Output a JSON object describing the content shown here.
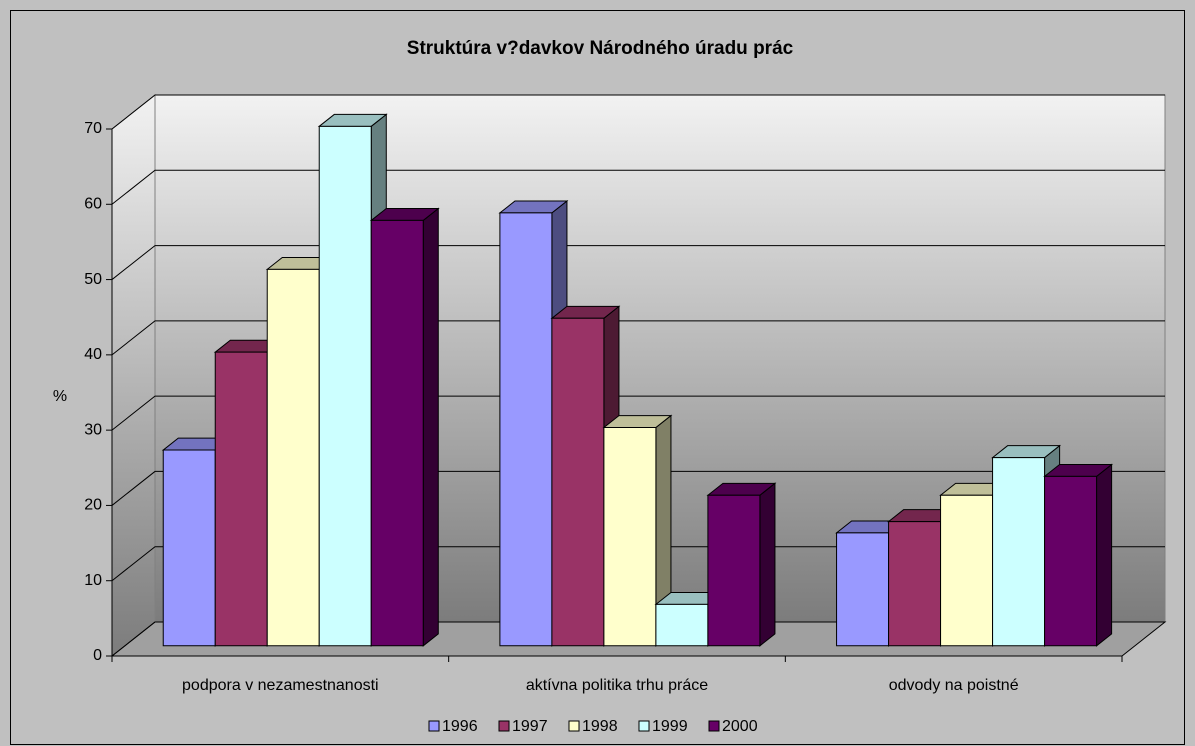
{
  "chart_data": {
    "type": "bar3d",
    "title": "Struktúra v?davkov Národného úradu prác",
    "y_label": "%",
    "categories": [
      "podpora v nezamestnanosti",
      "aktívna politika trhu práce",
      "odvody na poistné"
    ],
    "series": [
      {
        "name": "1996",
        "color": "#9999ff",
        "values": [
          26,
          57.5,
          15
        ]
      },
      {
        "name": "1997",
        "color": "#993366",
        "values": [
          39,
          43.5,
          16.5
        ]
      },
      {
        "name": "1998",
        "color": "#ffffcc",
        "values": [
          50,
          29,
          20
        ]
      },
      {
        "name": "1999",
        "color": "#ccffff",
        "values": [
          69,
          5.5,
          25
        ]
      },
      {
        "name": "2000",
        "color": "#660066",
        "values": [
          56.5,
          20,
          22.5
        ]
      }
    ],
    "ylim": [
      0,
      70
    ],
    "yticks": [
      0,
      10,
      20,
      30,
      40,
      50,
      60,
      70
    ],
    "grid": true,
    "legend": "bottom"
  }
}
